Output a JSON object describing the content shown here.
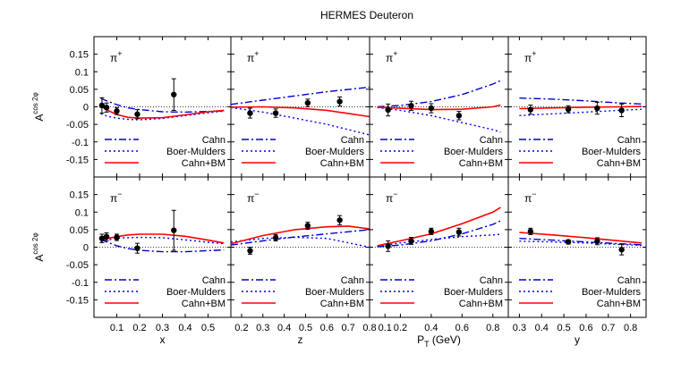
{
  "chart_data": {
    "type": "scatter",
    "title": "HERMES Deuteron",
    "ylabel": {
      "base": "A",
      "sup": "cos 2φ"
    },
    "ylim": [
      -0.2,
      0.2
    ],
    "yticks": [
      0.15,
      0.1,
      0.05,
      0,
      -0.05,
      -0.1,
      -0.15
    ],
    "legend": {
      "position": "bottom-right",
      "entries": [
        {
          "key": "cahn",
          "label": "Cahn",
          "color": "#0000cc",
          "style": "dashdot"
        },
        {
          "key": "bm",
          "label": "Boer-Mulders",
          "color": "#0000ff",
          "style": "dotted"
        },
        {
          "key": "total",
          "label": "Cahn+BM",
          "color": "#ff0000",
          "style": "solid"
        }
      ]
    },
    "columns": [
      {
        "var": "x",
        "xlabel": "x",
        "xlim": [
          0,
          0.6
        ],
        "xticks": [
          0.1,
          0.2,
          0.3,
          0.4,
          0.5
        ]
      },
      {
        "var": "z",
        "xlabel": "z",
        "xlim": [
          0.15,
          0.8
        ],
        "xticks": [
          0.2,
          0.3,
          0.4,
          0.5,
          0.6,
          0.7,
          0.8
        ]
      },
      {
        "var": "PT",
        "xlabel": {
          "base": "P",
          "sub": "T",
          "rest": " (GeV)"
        },
        "xlim": [
          0,
          0.9
        ],
        "xticks": [
          0.1,
          0.2,
          0.4,
          0.6,
          0.8
        ]
      },
      {
        "var": "y",
        "xlabel": "y",
        "xlim": [
          0.25,
          0.87
        ],
        "xticks": [
          0.3,
          0.4,
          0.5,
          0.6,
          0.7,
          0.8
        ]
      }
    ],
    "panels": [
      {
        "row": 0,
        "col": 0,
        "label": "π",
        "charge": "+",
        "points": [
          {
            "x": 0.035,
            "y": 0.004,
            "err": 0.022
          },
          {
            "x": 0.055,
            "y": -0.002,
            "err": 0.013
          },
          {
            "x": 0.1,
            "y": -0.012,
            "err": 0.01
          },
          {
            "x": 0.19,
            "y": -0.021,
            "err": 0.013
          },
          {
            "x": 0.35,
            "y": 0.035,
            "err": 0.045
          }
        ],
        "curves": {
          "cahn": [
            [
              0.03,
              0.024
            ],
            [
              0.06,
              0.016
            ],
            [
              0.1,
              0.006
            ],
            [
              0.15,
              -0.003
            ],
            [
              0.2,
              -0.008
            ],
            [
              0.3,
              -0.014
            ],
            [
              0.4,
              -0.015
            ],
            [
              0.5,
              -0.013
            ],
            [
              0.57,
              -0.012
            ]
          ],
          "bm": [
            [
              0.03,
              -0.02
            ],
            [
              0.06,
              -0.027
            ],
            [
              0.1,
              -0.032
            ],
            [
              0.15,
              -0.036
            ],
            [
              0.2,
              -0.037
            ],
            [
              0.3,
              -0.033
            ],
            [
              0.4,
              -0.025
            ],
            [
              0.5,
              -0.017
            ],
            [
              0.57,
              -0.012
            ]
          ],
          "total": [
            [
              0.03,
              0.002
            ],
            [
              0.06,
              -0.01
            ],
            [
              0.1,
              -0.022
            ],
            [
              0.15,
              -0.03
            ],
            [
              0.2,
              -0.032
            ],
            [
              0.3,
              -0.031
            ],
            [
              0.4,
              -0.023
            ],
            [
              0.5,
              -0.014
            ],
            [
              0.57,
              -0.01
            ]
          ]
        }
      },
      {
        "row": 0,
        "col": 1,
        "label": "π",
        "charge": "+",
        "points": [
          {
            "x": 0.24,
            "y": -0.018,
            "err": 0.014
          },
          {
            "x": 0.36,
            "y": -0.018,
            "err": 0.012
          },
          {
            "x": 0.51,
            "y": 0.011,
            "err": 0.011
          },
          {
            "x": 0.66,
            "y": 0.015,
            "err": 0.013
          }
        ],
        "curves": {
          "cahn": [
            [
              0.15,
              0.007
            ],
            [
              0.3,
              0.019
            ],
            [
              0.45,
              0.031
            ],
            [
              0.6,
              0.043
            ],
            [
              0.8,
              0.056
            ]
          ],
          "bm": [
            [
              0.15,
              -0.002
            ],
            [
              0.3,
              -0.015
            ],
            [
              0.45,
              -0.032
            ],
            [
              0.6,
              -0.05
            ],
            [
              0.8,
              -0.08
            ]
          ],
          "total": [
            [
              0.15,
              -0.001
            ],
            [
              0.3,
              0.0
            ],
            [
              0.45,
              -0.003
            ],
            [
              0.6,
              -0.01
            ],
            [
              0.8,
              -0.028
            ]
          ]
        }
      },
      {
        "row": 0,
        "col": 2,
        "label": "π",
        "charge": "+",
        "points": [
          {
            "x": 0.12,
            "y": -0.009,
            "err": 0.017
          },
          {
            "x": 0.27,
            "y": 0.003,
            "err": 0.013
          },
          {
            "x": 0.4,
            "y": -0.004,
            "err": 0.013
          },
          {
            "x": 0.58,
            "y": -0.025,
            "err": 0.012
          }
        ],
        "curves": {
          "cahn": [
            [
              0.05,
              0.0
            ],
            [
              0.2,
              0.004
            ],
            [
              0.4,
              0.015
            ],
            [
              0.6,
              0.035
            ],
            [
              0.8,
              0.065
            ],
            [
              0.85,
              0.075
            ]
          ],
          "bm": [
            [
              0.05,
              -0.002
            ],
            [
              0.2,
              -0.01
            ],
            [
              0.4,
              -0.025
            ],
            [
              0.6,
              -0.045
            ],
            [
              0.8,
              -0.065
            ],
            [
              0.85,
              -0.072
            ]
          ],
          "total": [
            [
              0.05,
              -0.001
            ],
            [
              0.2,
              -0.004
            ],
            [
              0.4,
              -0.008
            ],
            [
              0.6,
              -0.007
            ],
            [
              0.8,
              0.0
            ],
            [
              0.85,
              0.005
            ]
          ]
        }
      },
      {
        "row": 0,
        "col": 3,
        "label": "π",
        "charge": "+",
        "points": [
          {
            "x": 0.35,
            "y": -0.008,
            "err": 0.013
          },
          {
            "x": 0.52,
            "y": -0.007,
            "err": 0.01
          },
          {
            "x": 0.65,
            "y": -0.004,
            "err": 0.017
          },
          {
            "x": 0.76,
            "y": -0.01,
            "err": 0.018
          }
        ],
        "curves": {
          "cahn": [
            [
              0.3,
              0.025
            ],
            [
              0.45,
              0.022
            ],
            [
              0.6,
              0.017
            ],
            [
              0.75,
              0.011
            ],
            [
              0.85,
              0.008
            ]
          ],
          "bm": [
            [
              0.3,
              -0.025
            ],
            [
              0.45,
              -0.02
            ],
            [
              0.6,
              -0.015
            ],
            [
              0.75,
              -0.01
            ],
            [
              0.85,
              -0.007
            ]
          ],
          "total": [
            [
              0.3,
              -0.005
            ],
            [
              0.45,
              -0.003
            ],
            [
              0.6,
              -0.001
            ],
            [
              0.75,
              0.0
            ],
            [
              0.85,
              0.001
            ]
          ]
        }
      },
      {
        "row": 1,
        "col": 0,
        "label": "π",
        "charge": "−",
        "points": [
          {
            "x": 0.035,
            "y": 0.025,
            "err": 0.012
          },
          {
            "x": 0.055,
            "y": 0.03,
            "err": 0.011
          },
          {
            "x": 0.1,
            "y": 0.028,
            "err": 0.009
          },
          {
            "x": 0.19,
            "y": -0.003,
            "err": 0.014
          },
          {
            "x": 0.35,
            "y": 0.048,
            "err": 0.057
          }
        ],
        "curves": {
          "cahn": [
            [
              0.03,
              0.022
            ],
            [
              0.06,
              0.014
            ],
            [
              0.1,
              0.004
            ],
            [
              0.15,
              -0.004
            ],
            [
              0.2,
              -0.009
            ],
            [
              0.3,
              -0.013
            ],
            [
              0.4,
              -0.013
            ],
            [
              0.5,
              -0.01
            ],
            [
              0.57,
              -0.008
            ]
          ],
          "bm": [
            [
              0.03,
              0.015
            ],
            [
              0.06,
              0.02
            ],
            [
              0.1,
              0.026
            ],
            [
              0.2,
              0.028
            ],
            [
              0.3,
              0.027
            ],
            [
              0.4,
              0.021
            ],
            [
              0.5,
              0.014
            ],
            [
              0.57,
              0.01
            ]
          ],
          "total": [
            [
              0.03,
              0.02
            ],
            [
              0.06,
              0.025
            ],
            [
              0.1,
              0.03
            ],
            [
              0.15,
              0.035
            ],
            [
              0.2,
              0.037
            ],
            [
              0.3,
              0.037
            ],
            [
              0.4,
              0.031
            ],
            [
              0.5,
              0.02
            ],
            [
              0.57,
              0.012
            ]
          ]
        }
      },
      {
        "row": 1,
        "col": 1,
        "label": "π",
        "charge": "−",
        "points": [
          {
            "x": 0.24,
            "y": -0.01,
            "err": 0.01
          },
          {
            "x": 0.36,
            "y": 0.027,
            "err": 0.009
          },
          {
            "x": 0.51,
            "y": 0.061,
            "err": 0.01
          },
          {
            "x": 0.66,
            "y": 0.077,
            "err": 0.013
          }
        ],
        "curves": {
          "cahn": [
            [
              0.15,
              0.006
            ],
            [
              0.3,
              0.018
            ],
            [
              0.45,
              0.029
            ],
            [
              0.6,
              0.038
            ],
            [
              0.8,
              0.05
            ]
          ],
          "bm": [
            [
              0.15,
              0.015
            ],
            [
              0.3,
              0.025
            ],
            [
              0.45,
              0.028
            ],
            [
              0.6,
              0.025
            ],
            [
              0.8,
              0.0
            ]
          ],
          "total": [
            [
              0.15,
              0.01
            ],
            [
              0.3,
              0.033
            ],
            [
              0.45,
              0.05
            ],
            [
              0.6,
              0.058
            ],
            [
              0.7,
              0.06
            ],
            [
              0.8,
              0.052
            ]
          ]
        }
      },
      {
        "row": 1,
        "col": 2,
        "label": "π",
        "charge": "−",
        "points": [
          {
            "x": 0.12,
            "y": 0.003,
            "err": 0.015
          },
          {
            "x": 0.27,
            "y": 0.018,
            "err": 0.01
          },
          {
            "x": 0.4,
            "y": 0.045,
            "err": 0.009
          },
          {
            "x": 0.58,
            "y": 0.043,
            "err": 0.011
          }
        ],
        "curves": {
          "cahn": [
            [
              0.05,
              0.001
            ],
            [
              0.2,
              0.006
            ],
            [
              0.4,
              0.018
            ],
            [
              0.6,
              0.038
            ],
            [
              0.8,
              0.065
            ],
            [
              0.85,
              0.075
            ]
          ],
          "bm": [
            [
              0.05,
              0.003
            ],
            [
              0.2,
              0.012
            ],
            [
              0.4,
              0.022
            ],
            [
              0.6,
              0.03
            ],
            [
              0.8,
              0.035
            ],
            [
              0.85,
              0.037
            ]
          ],
          "total": [
            [
              0.05,
              0.004
            ],
            [
              0.2,
              0.018
            ],
            [
              0.4,
              0.038
            ],
            [
              0.6,
              0.067
            ],
            [
              0.8,
              0.1
            ],
            [
              0.85,
              0.113
            ]
          ]
        }
      },
      {
        "row": 1,
        "col": 3,
        "label": "π",
        "charge": "−",
        "points": [
          {
            "x": 0.35,
            "y": 0.045,
            "err": 0.009
          },
          {
            "x": 0.52,
            "y": 0.015,
            "err": 0.006
          },
          {
            "x": 0.65,
            "y": 0.017,
            "err": 0.01
          },
          {
            "x": 0.76,
            "y": -0.007,
            "err": 0.015
          }
        ],
        "curves": {
          "cahn": [
            [
              0.3,
              0.025
            ],
            [
              0.45,
              0.02
            ],
            [
              0.6,
              0.015
            ],
            [
              0.75,
              0.01
            ],
            [
              0.85,
              0.007
            ]
          ],
          "bm": [
            [
              0.3,
              0.017
            ],
            [
              0.45,
              0.015
            ],
            [
              0.6,
              0.012
            ],
            [
              0.75,
              0.008
            ],
            [
              0.85,
              0.005
            ]
          ],
          "total": [
            [
              0.3,
              0.042
            ],
            [
              0.45,
              0.035
            ],
            [
              0.6,
              0.027
            ],
            [
              0.75,
              0.018
            ],
            [
              0.85,
              0.012
            ]
          ]
        }
      }
    ]
  }
}
